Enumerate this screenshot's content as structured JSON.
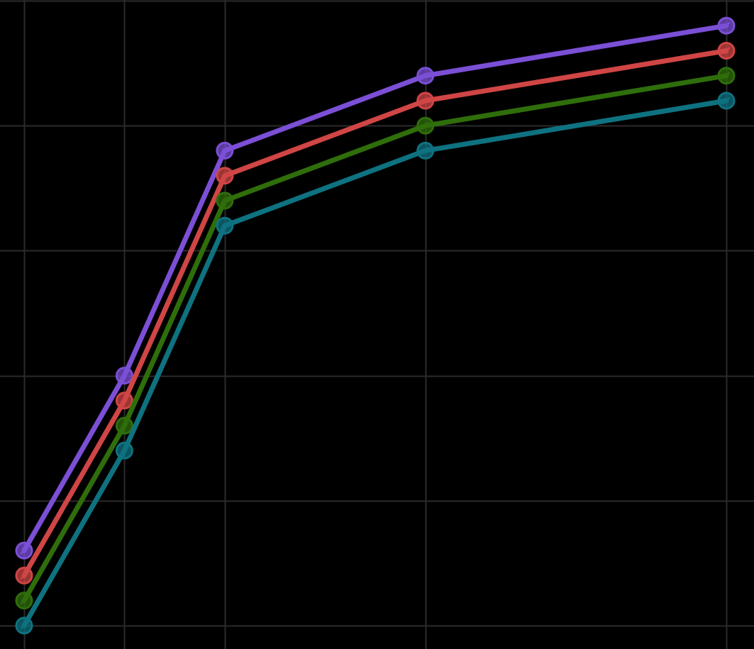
{
  "chart_data": {
    "type": "line",
    "title": "",
    "xlabel": "",
    "ylabel": "",
    "grid": true,
    "legend": "none",
    "xlim": [
      1,
      15
    ],
    "ylim": [
      0,
      5
    ],
    "x_grid": [
      1,
      3,
      5,
      9,
      15
    ],
    "y_grid": [
      0,
      1,
      2,
      3,
      4,
      5
    ],
    "x": [
      1,
      3,
      5,
      9,
      15
    ],
    "series": [
      {
        "color": "#7b4fd6",
        "values": [
          0.6,
          2.0,
          3.8,
          4.4,
          4.8
        ]
      },
      {
        "color": "#d04545",
        "values": [
          0.4,
          1.8,
          3.6,
          4.2,
          4.6
        ]
      },
      {
        "color": "#2f6e0b",
        "values": [
          0.2,
          1.6,
          3.4,
          4.0,
          4.4
        ]
      },
      {
        "color": "#0e7280",
        "values": [
          0.0,
          1.4,
          3.2,
          3.8,
          4.2
        ]
      }
    ]
  },
  "colors": {
    "background": "#000000",
    "grid": "#2b2b2b"
  }
}
